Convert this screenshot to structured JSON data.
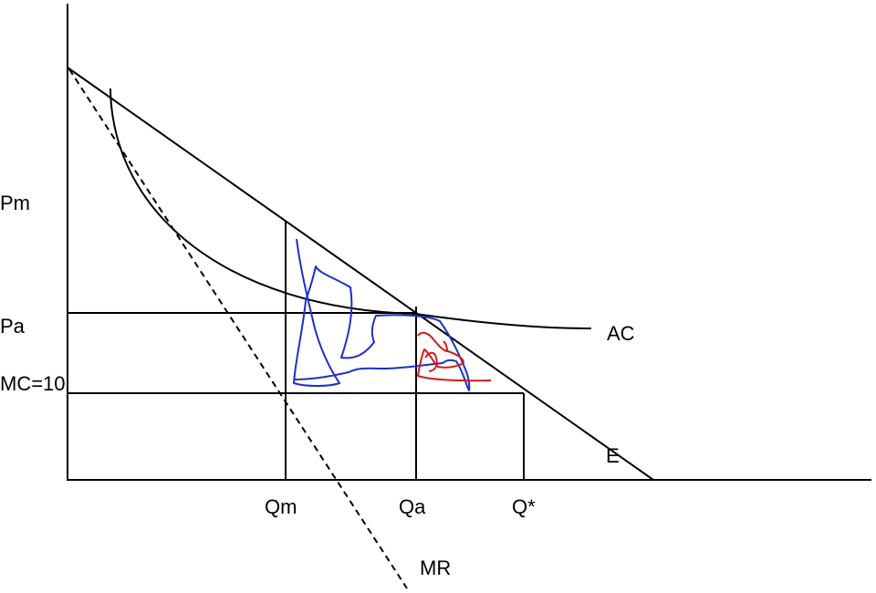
{
  "chart_data": {
    "type": "line",
    "title": "",
    "xlabel": "",
    "ylabel": "",
    "x_ticks": [
      "Qm",
      "Qa",
      "Q*"
    ],
    "y_ticks": [
      "Pm",
      "Pa",
      "MC=10"
    ],
    "series": [
      {
        "name": "E"
      },
      {
        "name": "MR"
      },
      {
        "name": "AC"
      }
    ],
    "grid": false,
    "legend": "none",
    "colors": {
      "axis": "#000000",
      "curves": "#000000",
      "scribble_blue": "#1f2fc8",
      "scribble_red": "#d21c1c"
    }
  }
}
